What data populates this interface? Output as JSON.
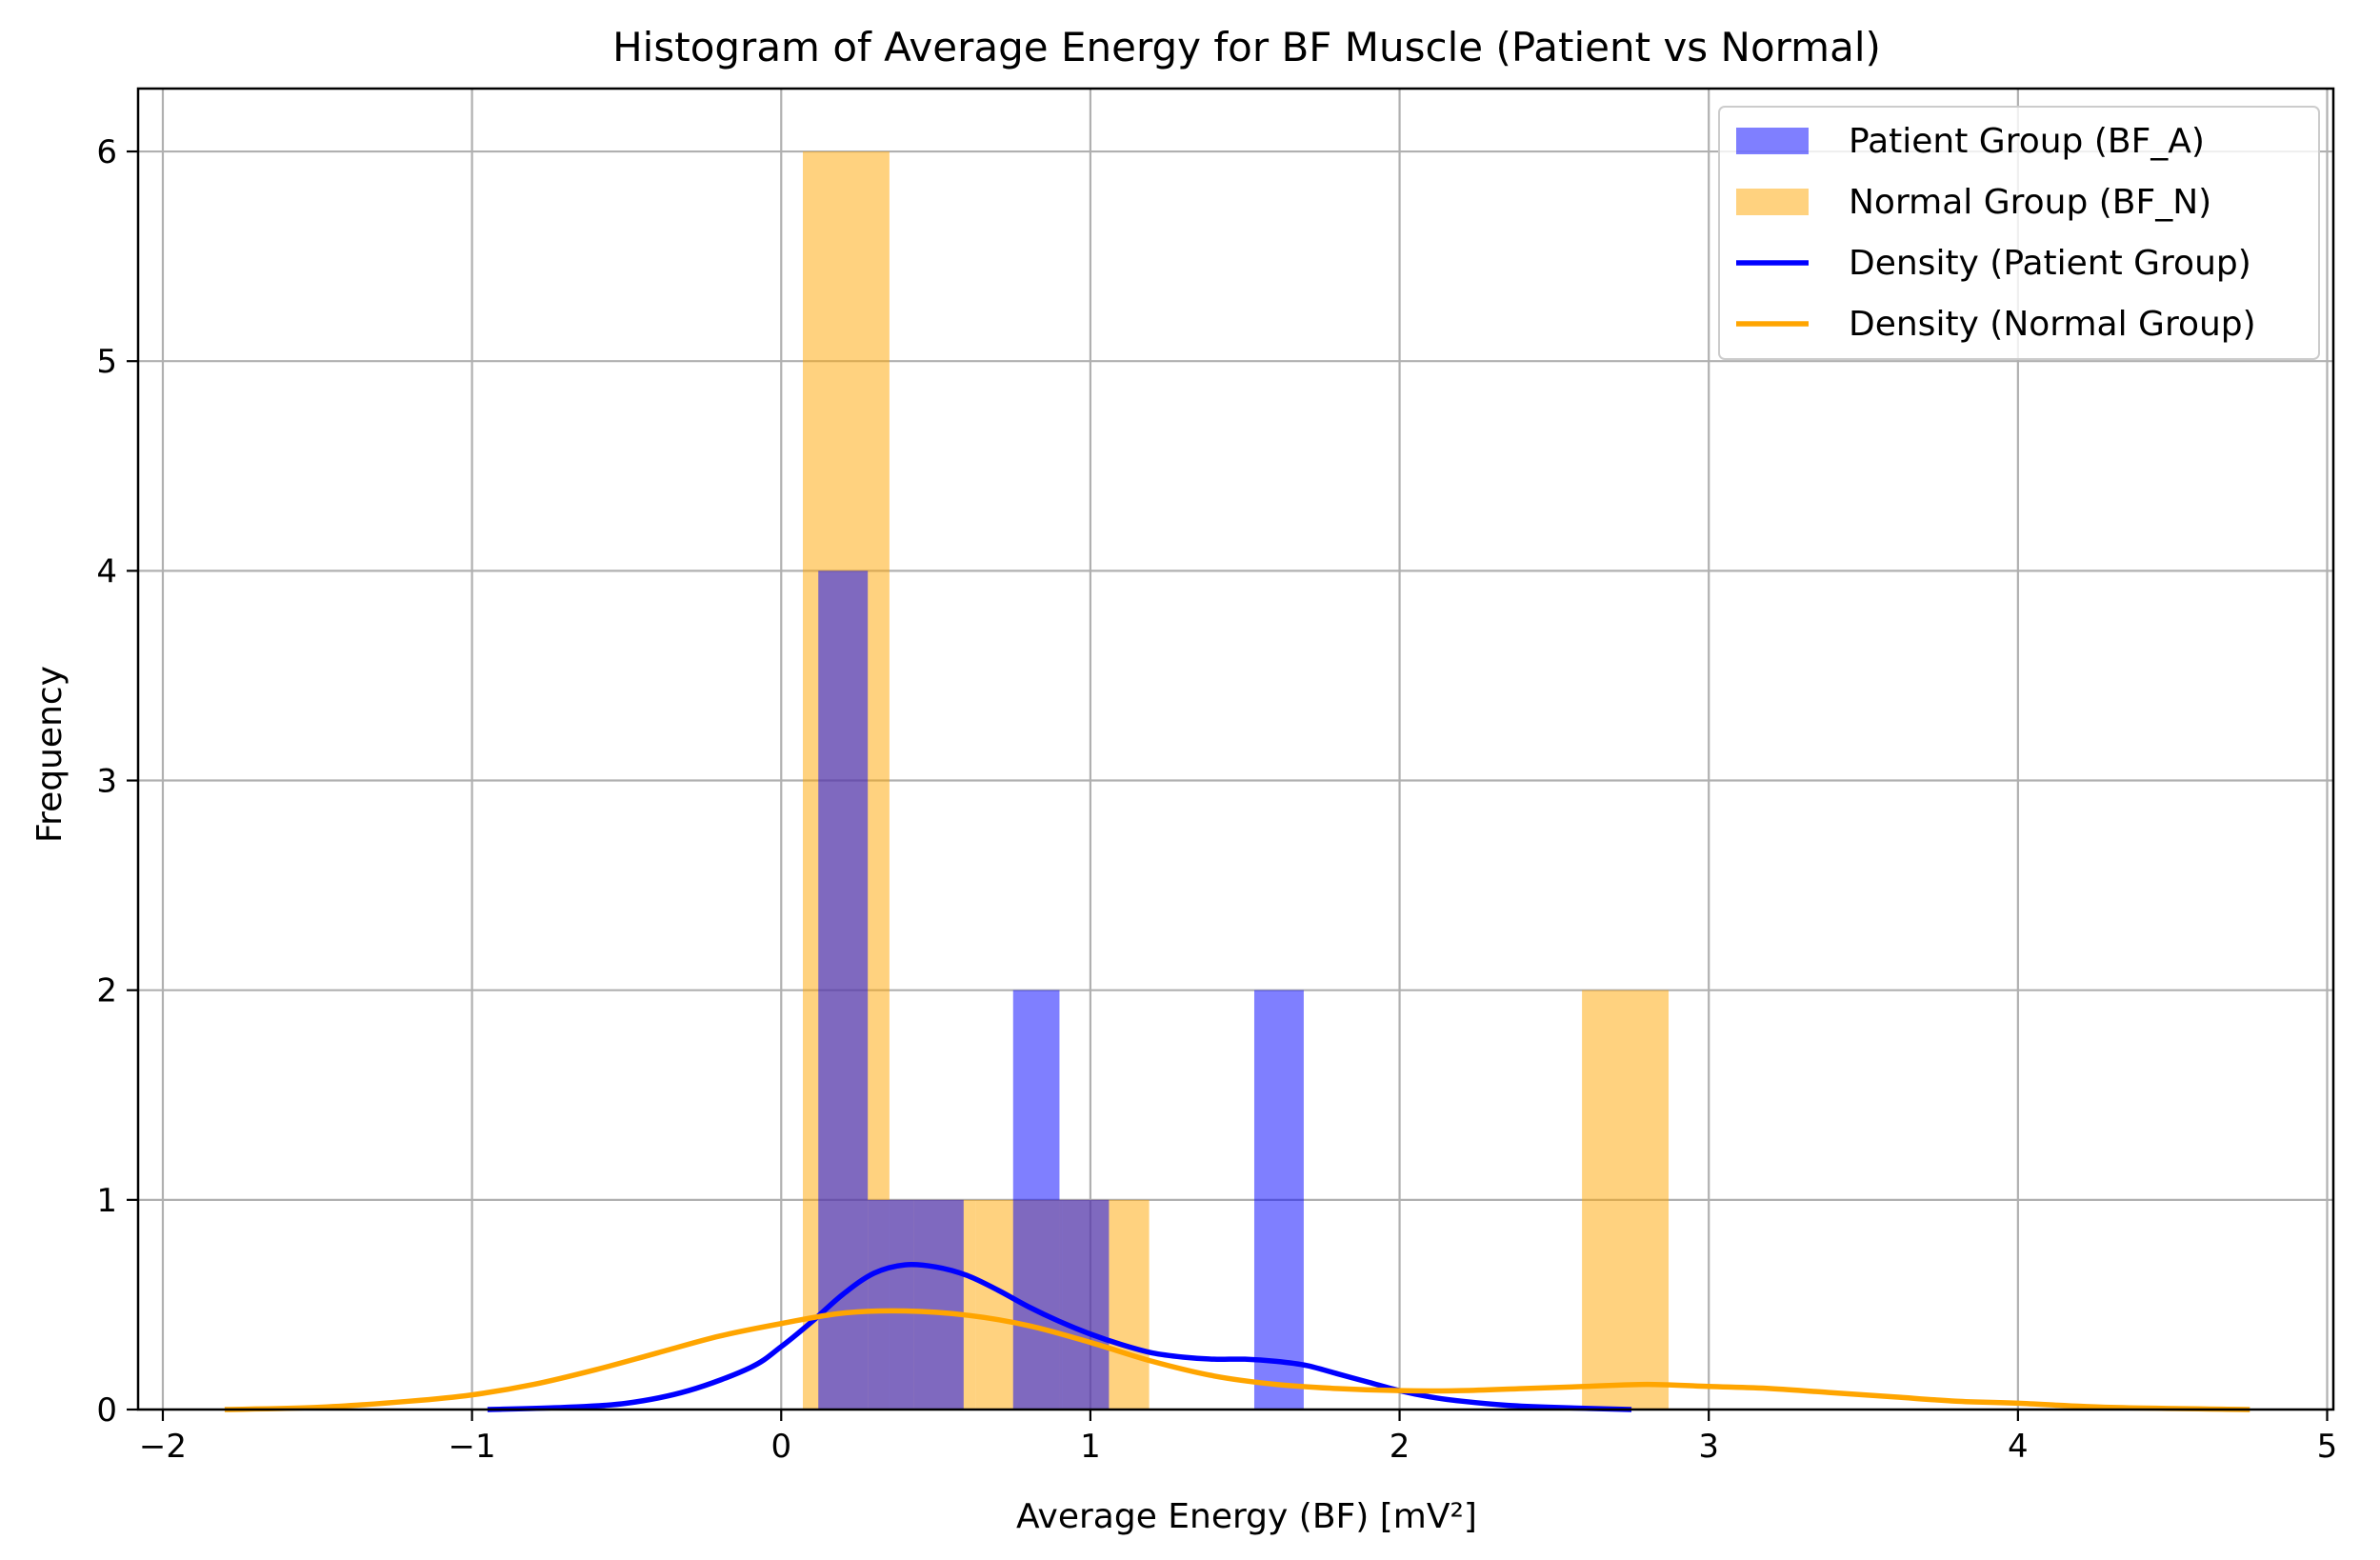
{
  "chart_data": {
    "type": "bar",
    "title": "Histogram of Average Energy for BF Muscle (Patient vs Normal)",
    "xlabel": "Average Energy (BF) [mV²]",
    "ylabel": "Frequency",
    "xlim": [
      -2.08,
      5.02
    ],
    "ylim": [
      0,
      6.3
    ],
    "grid": true,
    "legend_position": "top-right",
    "xticks": [
      {
        "value": -2,
        "label": "−2"
      },
      {
        "value": -1,
        "label": "−1"
      },
      {
        "value": 0,
        "label": "0"
      },
      {
        "value": 1,
        "label": "1"
      },
      {
        "value": 2,
        "label": "2"
      },
      {
        "value": 3,
        "label": "3"
      },
      {
        "value": 4,
        "label": "4"
      },
      {
        "value": 5,
        "label": "5"
      }
    ],
    "yticks": [
      {
        "value": 0,
        "label": "0"
      },
      {
        "value": 1,
        "label": "1"
      },
      {
        "value": 2,
        "label": "2"
      },
      {
        "value": 3,
        "label": "3"
      },
      {
        "value": 4,
        "label": "4"
      },
      {
        "value": 5,
        "label": "5"
      },
      {
        "value": 6,
        "label": "6"
      }
    ],
    "histograms": [
      {
        "name": "Normal Group (BF_N)",
        "color": "#ffa500",
        "opacity": 0.5,
        "bins": [
          {
            "x0": 0.07,
            "x1": 0.35,
            "count": 6
          },
          {
            "x0": 0.35,
            "x1": 0.63,
            "count": 1
          },
          {
            "x0": 0.63,
            "x1": 0.91,
            "count": 1
          },
          {
            "x0": 0.91,
            "x1": 1.19,
            "count": 1
          },
          {
            "x0": 2.59,
            "x1": 2.87,
            "count": 2
          }
        ]
      },
      {
        "name": "Patient Group (BF_A)",
        "color": "#0000ff",
        "opacity": 0.5,
        "bins": [
          {
            "x0": 0.12,
            "x1": 0.28,
            "count": 4
          },
          {
            "x0": 0.28,
            "x1": 0.43,
            "count": 1
          },
          {
            "x0": 0.43,
            "x1": 0.59,
            "count": 1
          },
          {
            "x0": 0.75,
            "x1": 0.9,
            "count": 2
          },
          {
            "x0": 0.9,
            "x1": 1.06,
            "count": 1
          },
          {
            "x0": 1.53,
            "x1": 1.69,
            "count": 2
          }
        ]
      }
    ],
    "density_series": [
      {
        "name": "Density (Patient Group)",
        "color": "#0000ff",
        "x": [
          -0.95,
          -0.7,
          -0.5,
          -0.3,
          -0.1,
          0.0,
          0.1,
          0.2,
          0.3,
          0.4,
          0.5,
          0.6,
          0.7,
          0.8,
          0.9,
          1.0,
          1.1,
          1.2,
          1.3,
          1.4,
          1.5,
          1.6,
          1.7,
          1.8,
          1.9,
          2.0,
          2.1,
          2.2,
          2.35,
          2.5,
          2.75
        ],
        "y": [
          0.0,
          0.01,
          0.03,
          0.09,
          0.2,
          0.3,
          0.42,
          0.55,
          0.65,
          0.69,
          0.68,
          0.64,
          0.57,
          0.49,
          0.42,
          0.36,
          0.31,
          0.27,
          0.25,
          0.24,
          0.24,
          0.23,
          0.21,
          0.17,
          0.13,
          0.09,
          0.06,
          0.04,
          0.02,
          0.01,
          0.0
        ]
      },
      {
        "name": "Density (Normal Group)",
        "color": "#ffa500",
        "x": [
          -1.8,
          -1.5,
          -1.2,
          -1.0,
          -0.8,
          -0.6,
          -0.4,
          -0.2,
          0.0,
          0.2,
          0.4,
          0.6,
          0.8,
          1.0,
          1.2,
          1.4,
          1.6,
          1.8,
          2.0,
          2.2,
          2.4,
          2.6,
          2.8,
          3.0,
          3.2,
          3.4,
          3.6,
          3.8,
          4.0,
          4.3,
          4.75
        ],
        "y": [
          0.0,
          0.01,
          0.04,
          0.07,
          0.12,
          0.19,
          0.27,
          0.35,
          0.41,
          0.46,
          0.47,
          0.45,
          0.4,
          0.32,
          0.23,
          0.16,
          0.12,
          0.1,
          0.09,
          0.09,
          0.1,
          0.11,
          0.12,
          0.11,
          0.1,
          0.08,
          0.06,
          0.04,
          0.03,
          0.01,
          0.0
        ]
      }
    ],
    "legend": [
      {
        "label": "Patient Group (BF_A)",
        "kind": "patch",
        "color": "#0000ff",
        "opacity": 0.5
      },
      {
        "label": "Normal Group (BF_N)",
        "kind": "patch",
        "color": "#ffa500",
        "opacity": 0.5
      },
      {
        "label": "Density (Patient Group)",
        "kind": "line",
        "color": "#0000ff"
      },
      {
        "label": "Density (Normal Group)",
        "kind": "line",
        "color": "#ffa500"
      }
    ]
  }
}
